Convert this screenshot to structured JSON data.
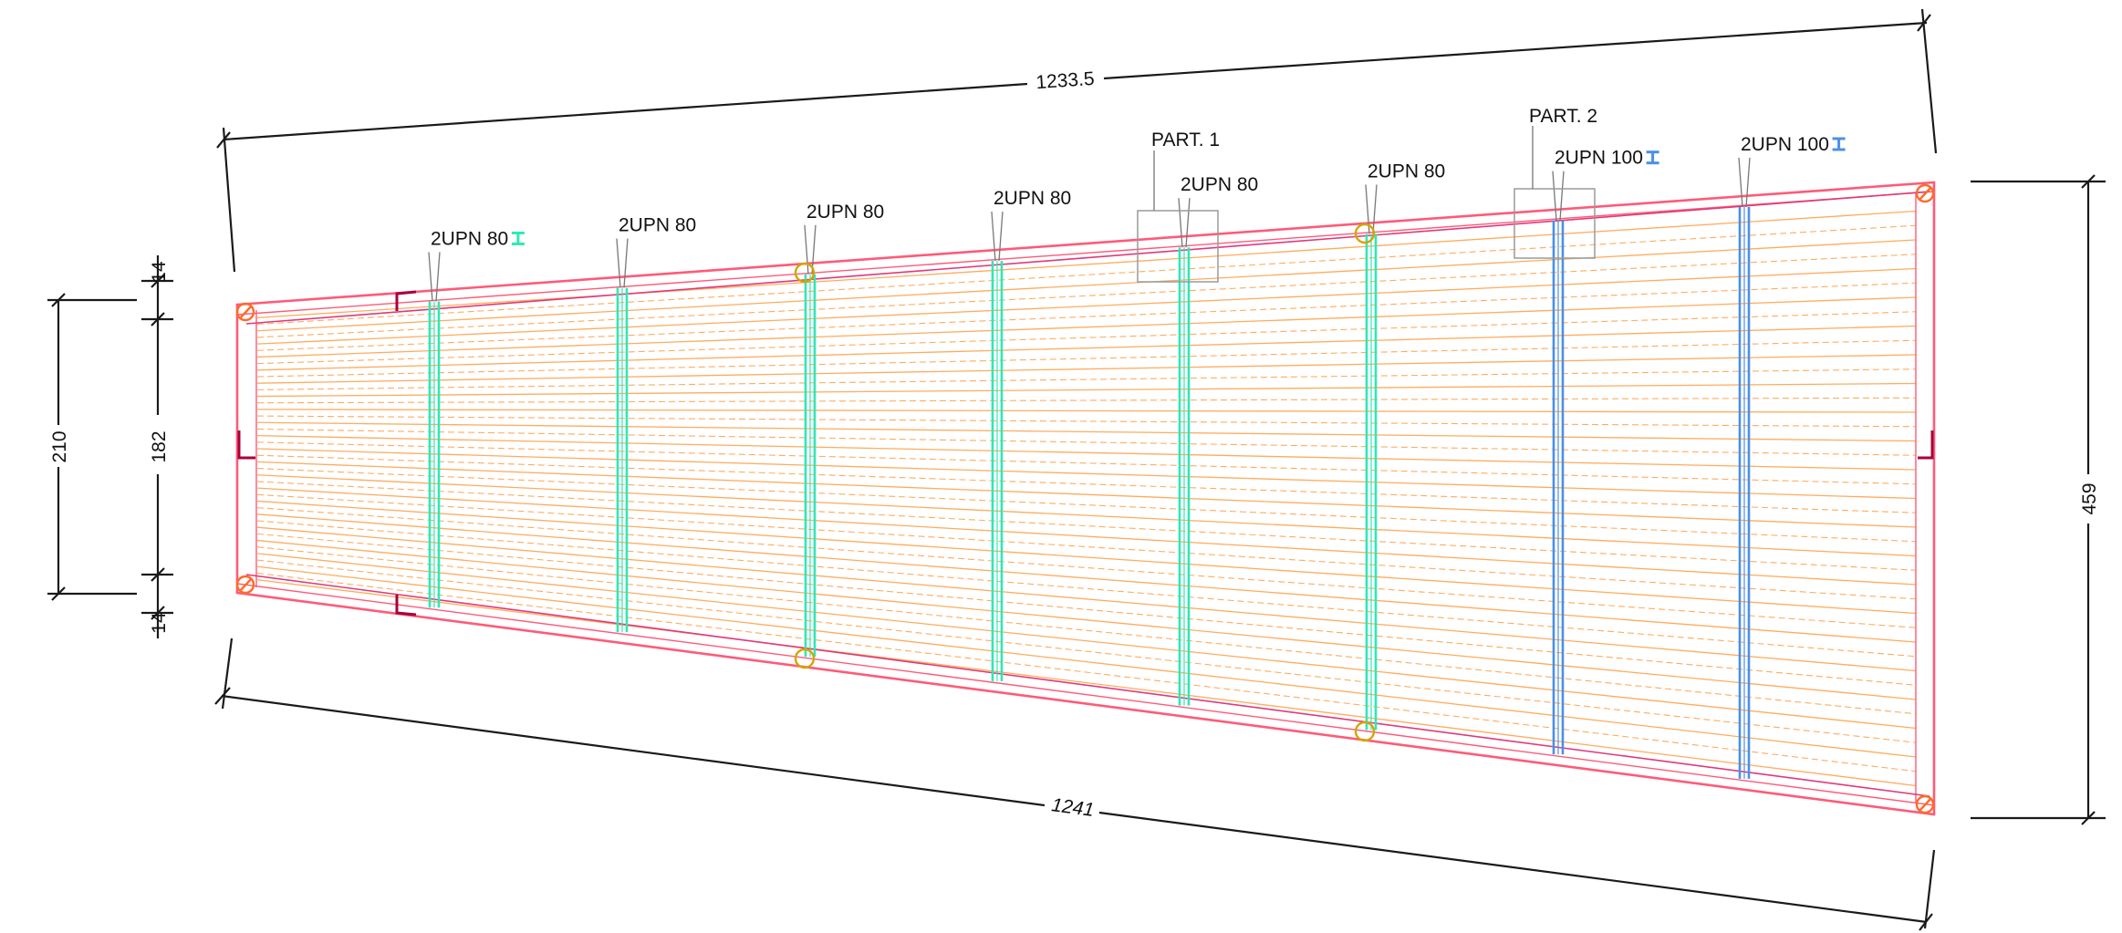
{
  "dimensions": {
    "top_length": "1233.5",
    "bottom_length": "1241",
    "left_total": "210",
    "left_top_edge": "14",
    "left_middle": "182",
    "left_bottom_edge": "14",
    "right_height": "459"
  },
  "parts": [
    "PART. 1",
    "PART. 2"
  ],
  "crossbeams": [
    {
      "label": "2UPN 80",
      "kind": "upn80",
      "icon": "i-beam-icon"
    },
    {
      "label": "2UPN 80",
      "kind": "upn80"
    },
    {
      "label": "2UPN 80",
      "kind": "upn80"
    },
    {
      "label": "2UPN 80",
      "kind": "upn80"
    },
    {
      "label": "2UPN 80",
      "kind": "upn80"
    },
    {
      "label": "2UPN 80",
      "kind": "upn80"
    },
    {
      "label": "2UPN 100",
      "kind": "upn100",
      "icon": "i-beam-icon"
    },
    {
      "label": "2UPN 100",
      "kind": "upn100",
      "icon": "i-beam-icon"
    }
  ],
  "colors": {
    "upn80": "#2ee8b8",
    "upn100": "#4a90e8",
    "outline": "#ff5a78",
    "slats": "#ffab5c",
    "pins": "#ff6a2a",
    "brackets": "#a8003a"
  }
}
